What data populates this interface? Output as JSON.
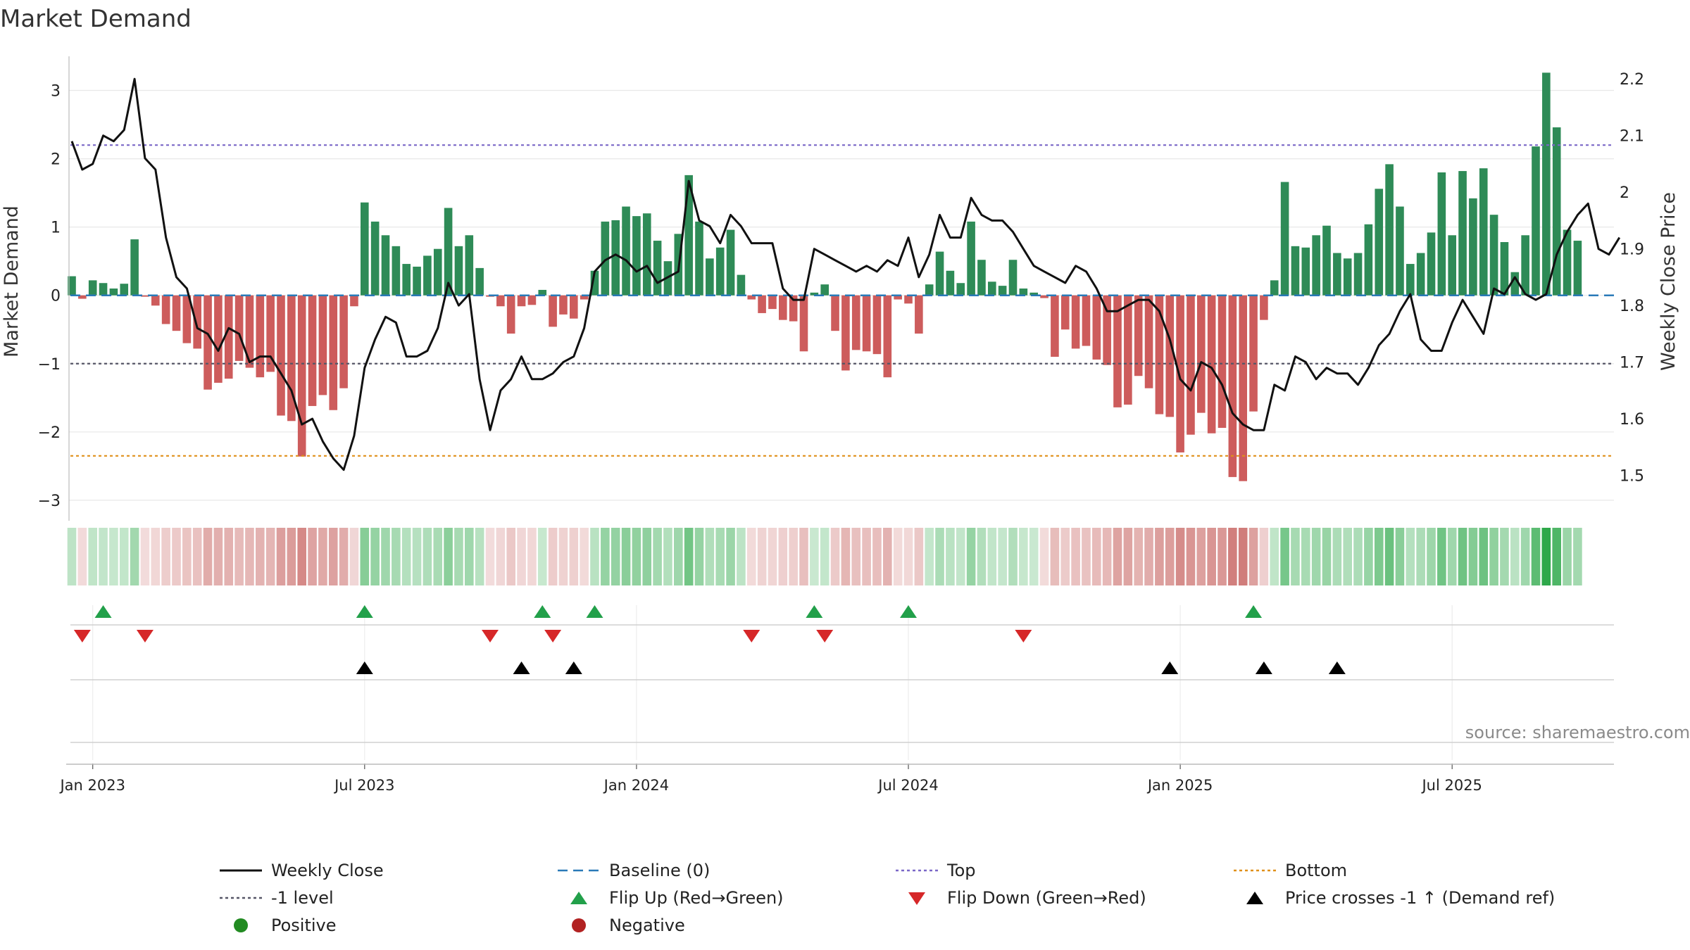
{
  "chart_data": {
    "type": "bar",
    "title": "Market Demand",
    "ylabel": "Market Demand",
    "y2label": "Weekly Close Price",
    "ylim": [
      -3.3,
      3.5
    ],
    "y2lim": [
      1.42,
      2.24
    ],
    "yticks": [
      "3",
      "2",
      "1",
      "0",
      "−1",
      "−2",
      "−3"
    ],
    "ytick_values": [
      3,
      2,
      1,
      0,
      -1,
      -2,
      -3
    ],
    "y2ticks": [
      "2.2",
      "2.1",
      "2",
      "1.9",
      "1.8",
      "1.7",
      "1.6",
      "1.5"
    ],
    "y2tick_values": [
      2.2,
      2.1,
      2.0,
      1.9,
      1.8,
      1.7,
      1.6,
      1.5
    ],
    "xticks": [
      "Jan 2023",
      "Jul 2023",
      "Jan 2024",
      "Jul 2024",
      "Jan 2025",
      "Jul 2025"
    ],
    "xtick_weeks": [
      2,
      28,
      54,
      80,
      106,
      132
    ],
    "x_unit": "weeks since 2022-12-19",
    "demand": [
      0.28,
      -0.05,
      0.22,
      0.18,
      0.1,
      0.17,
      0.82,
      -0.02,
      -0.15,
      -0.42,
      -0.52,
      -0.7,
      -0.78,
      -1.38,
      -1.28,
      -1.22,
      -0.96,
      -1.06,
      -1.2,
      -1.12,
      -1.76,
      -1.84,
      -2.36,
      -1.62,
      -1.46,
      -1.68,
      -1.36,
      -0.16,
      1.36,
      1.08,
      0.88,
      0.72,
      0.46,
      0.42,
      0.58,
      0.68,
      1.28,
      0.72,
      0.88,
      0.4,
      -0.02,
      -0.16,
      -0.56,
      -0.16,
      -0.14,
      0.08,
      -0.46,
      -0.28,
      -0.34,
      -0.06,
      0.36,
      1.08,
      1.1,
      1.3,
      1.16,
      1.2,
      0.8,
      0.5,
      0.9,
      1.76,
      1.08,
      0.54,
      0.7,
      0.96,
      0.3,
      -0.06,
      -0.26,
      -0.2,
      -0.36,
      -0.38,
      -0.82,
      0.04,
      0.16,
      -0.52,
      -1.1,
      -0.8,
      -0.82,
      -0.86,
      -1.2,
      -0.06,
      -0.12,
      -0.56,
      0.16,
      0.64,
      0.36,
      0.18,
      1.08,
      0.52,
      0.2,
      0.14,
      0.52,
      0.1,
      0.04,
      -0.04,
      -0.9,
      -0.5,
      -0.78,
      -0.74,
      -0.94,
      -1.02,
      -1.64,
      -1.6,
      -1.18,
      -1.36,
      -1.74,
      -1.78,
      -2.3,
      -2.04,
      -1.72,
      -2.02,
      -1.94,
      -2.66,
      -2.72,
      -1.7,
      -0.36,
      0.22,
      1.66,
      0.72,
      0.7,
      0.88,
      1.02,
      0.62,
      0.54,
      0.62,
      1.04,
      1.56,
      1.92,
      1.3,
      0.46,
      0.62,
      0.92,
      1.8,
      0.88,
      1.82,
      1.42,
      1.86,
      1.18,
      0.78,
      0.34,
      0.88,
      2.18,
      3.26,
      2.46,
      0.96,
      0.8
    ],
    "close": [
      2.09,
      2.04,
      2.05,
      2.1,
      2.09,
      2.11,
      2.2,
      2.06,
      2.04,
      1.92,
      1.85,
      1.83,
      1.76,
      1.75,
      1.72,
      1.76,
      1.75,
      1.7,
      1.71,
      1.71,
      1.68,
      1.65,
      1.59,
      1.6,
      1.56,
      1.53,
      1.51,
      1.57,
      1.69,
      1.74,
      1.78,
      1.77,
      1.71,
      1.71,
      1.72,
      1.76,
      1.84,
      1.8,
      1.82,
      1.67,
      1.58,
      1.65,
      1.67,
      1.71,
      1.67,
      1.67,
      1.68,
      1.7,
      1.71,
      1.76,
      1.86,
      1.88,
      1.89,
      1.88,
      1.86,
      1.87,
      1.84,
      1.85,
      1.86,
      2.02,
      1.95,
      1.94,
      1.91,
      1.96,
      1.94,
      1.91,
      1.91,
      1.91,
      1.83,
      1.81,
      1.81,
      1.9,
      1.89,
      1.88,
      1.87,
      1.86,
      1.87,
      1.86,
      1.88,
      1.87,
      1.92,
      1.85,
      1.89,
      1.96,
      1.92,
      1.92,
      1.99,
      1.96,
      1.95,
      1.95,
      1.93,
      1.9,
      1.87,
      1.86,
      1.85,
      1.84,
      1.87,
      1.86,
      1.83,
      1.79,
      1.79,
      1.8,
      1.81,
      1.81,
      1.79,
      1.74,
      1.67,
      1.65,
      1.7,
      1.69,
      1.66,
      1.61,
      1.59,
      1.58,
      1.58,
      1.66,
      1.65,
      1.71,
      1.7,
      1.67,
      1.69,
      1.68,
      1.68,
      1.66,
      1.69,
      1.73,
      1.75,
      1.79,
      1.82,
      1.74,
      1.72,
      1.72,
      1.77,
      1.81,
      1.78,
      1.75,
      1.83,
      1.82,
      1.85,
      1.82,
      1.81,
      1.82,
      1.89,
      1.93,
      1.96,
      1.98,
      1.9,
      1.89,
      1.92
    ],
    "reference_lines": [
      {
        "name": "Top",
        "value": 2.2
      },
      {
        "name": "-1 level",
        "value": -1
      },
      {
        "name": "Bottom",
        "value": -2.35
      },
      {
        "name": "Baseline (0)",
        "value": 0
      }
    ],
    "flip_up_weeks": [
      3,
      28,
      45,
      50,
      71,
      80,
      113
    ],
    "flip_down_weeks": [
      1,
      7,
      40,
      46,
      65,
      72,
      91
    ],
    "price_cross_weeks": [
      28,
      43,
      48,
      105,
      114,
      121
    ],
    "legend": [
      {
        "key": "weekly_close",
        "label": "Weekly Close"
      },
      {
        "key": "baseline",
        "label": "Baseline (0)"
      },
      {
        "key": "top",
        "label": "Top"
      },
      {
        "key": "bottom",
        "label": "Bottom"
      },
      {
        "key": "minus1",
        "label": "-1 level"
      },
      {
        "key": "flip_up",
        "label": "Flip Up (Red→Green)"
      },
      {
        "key": "flip_down",
        "label": "Flip Down (Green→Red)"
      },
      {
        "key": "price_cross",
        "label": "Price crosses -1 ↑ (Demand ref)"
      },
      {
        "key": "positive",
        "label": "Positive"
      },
      {
        "key": "negative",
        "label": "Negative"
      }
    ],
    "legend_position": "bottom-center",
    "colors": {
      "positive": "#2e8b57",
      "negative": "#cd5c5c",
      "close_line": "#111111",
      "top_line": "#7b68c8",
      "minus1_line": "#555566",
      "bottom_line": "#e0901a",
      "baseline": "#2a7ab8",
      "flip_up": "#22a04a",
      "flip_down": "#d62728",
      "price_cross": "#000000",
      "positive_dot": "#228b22",
      "negative_dot": "#b22222"
    }
  },
  "source": "source: sharemaestro.com"
}
